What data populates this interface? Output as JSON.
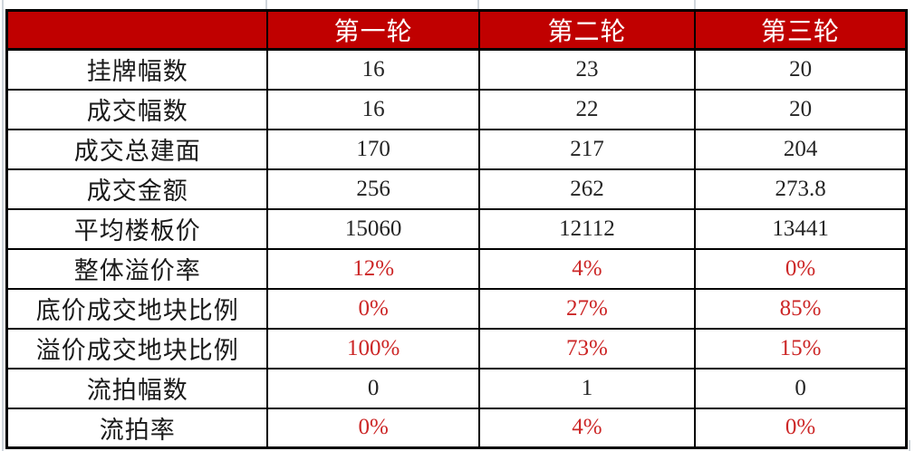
{
  "colors": {
    "header_bg": "#C00000",
    "header_text": "#FFFFFF",
    "accent_red": "#CC2626",
    "border": "#000000"
  },
  "table": {
    "columns": [
      "",
      "第一轮",
      "第二轮",
      "第三轮"
    ],
    "rows": [
      {
        "label": "挂牌幅数",
        "values": [
          "16",
          "23",
          "20"
        ],
        "red": false
      },
      {
        "label": "成交幅数",
        "values": [
          "16",
          "22",
          "20"
        ],
        "red": false
      },
      {
        "label": "成交总建面",
        "values": [
          "170",
          "217",
          "204"
        ],
        "red": false
      },
      {
        "label": "成交金额",
        "values": [
          "256",
          "262",
          "273.8"
        ],
        "red": false
      },
      {
        "label": "平均楼板价",
        "values": [
          "15060",
          "12112",
          "13441"
        ],
        "red": false
      },
      {
        "label": "整体溢价率",
        "values": [
          "12%",
          "4%",
          "0%"
        ],
        "red": true
      },
      {
        "label": "底价成交地块比例",
        "values": [
          "0%",
          "27%",
          "85%"
        ],
        "red": true
      },
      {
        "label": "溢价成交地块比例",
        "values": [
          "100%",
          "73%",
          "15%"
        ],
        "red": true
      },
      {
        "label": "流拍幅数",
        "values": [
          "0",
          "1",
          "0"
        ],
        "red": false
      },
      {
        "label": "流拍率",
        "values": [
          "0%",
          "4%",
          "0%"
        ],
        "red": true
      }
    ]
  },
  "chart_data": {
    "type": "table",
    "title": "",
    "columns": [
      "",
      "第一轮",
      "第二轮",
      "第三轮"
    ],
    "rows": [
      [
        "挂牌幅数",
        "16",
        "23",
        "20"
      ],
      [
        "成交幅数",
        "16",
        "22",
        "20"
      ],
      [
        "成交总建面",
        "170",
        "217",
        "204"
      ],
      [
        "成交金额",
        "256",
        "262",
        "273.8"
      ],
      [
        "平均楼板价",
        "15060",
        "12112",
        "13441"
      ],
      [
        "整体溢价率",
        "12%",
        "4%",
        "0%"
      ],
      [
        "底价成交地块比例",
        "0%",
        "27%",
        "85%"
      ],
      [
        "溢价成交地块比例",
        "100%",
        "73%",
        "15%"
      ],
      [
        "流拍幅数",
        "0",
        "1",
        "0"
      ],
      [
        "流拍率",
        "0%",
        "4%",
        "0%"
      ]
    ],
    "notes": "red text rows: 整体溢价率, 底价成交地块比例, 溢价成交地块比例, 流拍率"
  }
}
